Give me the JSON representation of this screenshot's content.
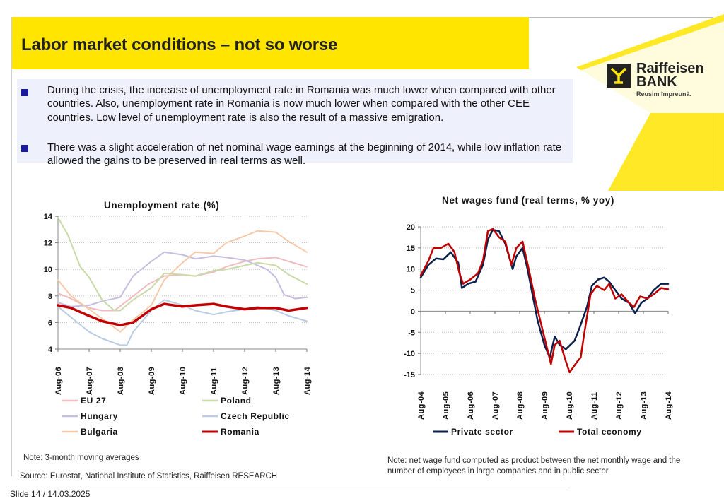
{
  "title": "Labor market conditions – not so worse",
  "logo": {
    "brand_line1": "Raiffeisen",
    "brand_line2": "BANK",
    "slogan": "Reușim împreună."
  },
  "bullets": [
    "During the crisis, the increase of unemployment rate in Romania was much lower when compared with other countries. Also, unemployment rate in Romania is now much lower when compared with the other CEE countries. Low level of unemployment rate is also the result of a massive emigration.",
    "There was a slight acceleration of net nominal wage earnings at the beginning of 2014, while low inflation rate allowed the gains to be preserved in real terms as well."
  ],
  "notes": {
    "left": "Note: 3-month moving averages",
    "source": "Source: Eurostat, National Institute of Statistics, Raiffeisen RESEARCH",
    "right": "Note: net wage fund computed as product between the net monthly wage and the number of employees in large companies and in public sector"
  },
  "slide": "Slide 14 / 14.03.2025",
  "chart_data": [
    {
      "type": "line",
      "title": "Unemployment rate (%)",
      "ylim": [
        4,
        14
      ],
      "yticks": [
        "4",
        "6",
        "8",
        "10",
        "12",
        "14"
      ],
      "x_start": 2006.583,
      "x_end": 2014.583,
      "xtick_labels": [
        "Aug-06",
        "Aug-07",
        "Aug-08",
        "Aug-09",
        "Aug-10",
        "Aug-11",
        "Aug-12",
        "Aug-13",
        "Aug-14"
      ],
      "xtick_pos": [
        2006.583,
        2007.583,
        2008.583,
        2009.583,
        2010.583,
        2011.583,
        2012.583,
        2013.583,
        2014.583
      ],
      "grid": true,
      "series": [
        {
          "name": "EU 27",
          "color": "#f0bcc0",
          "width": 2,
          "points": [
            [
              2006.583,
              8.2
            ],
            [
              2007.0,
              7.8
            ],
            [
              2007.583,
              7.1
            ],
            [
              2008.0,
              6.9
            ],
            [
              2008.4,
              6.9
            ],
            [
              2008.9,
              7.8
            ],
            [
              2009.5,
              8.9
            ],
            [
              2010.0,
              9.5
            ],
            [
              2010.583,
              9.6
            ],
            [
              2011.0,
              9.5
            ],
            [
              2011.583,
              9.8
            ],
            [
              2012.0,
              10.2
            ],
            [
              2012.583,
              10.6
            ],
            [
              2013.0,
              10.8
            ],
            [
              2013.583,
              10.9
            ],
            [
              2014.0,
              10.6
            ],
            [
              2014.583,
              10.2
            ]
          ]
        },
        {
          "name": "Hungary",
          "color": "#c7bde0",
          "width": 2,
          "points": [
            [
              2006.583,
              7.5
            ],
            [
              2007.0,
              7.2
            ],
            [
              2007.583,
              7.3
            ],
            [
              2008.0,
              7.6
            ],
            [
              2008.583,
              7.9
            ],
            [
              2009.0,
              9.5
            ],
            [
              2009.583,
              10.6
            ],
            [
              2010.0,
              11.3
            ],
            [
              2010.583,
              11.1
            ],
            [
              2011.0,
              10.8
            ],
            [
              2011.583,
              11.0
            ],
            [
              2012.0,
              10.9
            ],
            [
              2012.583,
              10.7
            ],
            [
              2013.0,
              10.3
            ],
            [
              2013.3,
              10.0
            ],
            [
              2013.583,
              9.4
            ],
            [
              2013.85,
              8.1
            ],
            [
              2014.2,
              7.8
            ],
            [
              2014.583,
              7.9
            ]
          ]
        },
        {
          "name": "Bulgaria",
          "color": "#f8c9a8",
          "width": 2,
          "points": [
            [
              2006.583,
              9.2
            ],
            [
              2007.0,
              8.0
            ],
            [
              2007.583,
              7.0
            ],
            [
              2008.0,
              6.3
            ],
            [
              2008.583,
              5.3
            ],
            [
              2009.0,
              6.2
            ],
            [
              2009.583,
              7.3
            ],
            [
              2010.0,
              9.2
            ],
            [
              2010.583,
              10.5
            ],
            [
              2011.0,
              11.3
            ],
            [
              2011.583,
              11.2
            ],
            [
              2012.0,
              12.0
            ],
            [
              2012.583,
              12.5
            ],
            [
              2013.0,
              12.9
            ],
            [
              2013.583,
              12.8
            ],
            [
              2014.0,
              12.1
            ],
            [
              2014.583,
              11.3
            ]
          ]
        },
        {
          "name": "Poland",
          "color": "#c8dba8",
          "width": 2,
          "points": [
            [
              2006.583,
              13.9
            ],
            [
              2006.9,
              12.6
            ],
            [
              2007.3,
              10.2
            ],
            [
              2007.583,
              9.4
            ],
            [
              2008.0,
              7.7
            ],
            [
              2008.4,
              6.9
            ],
            [
              2008.583,
              6.9
            ],
            [
              2009.0,
              7.7
            ],
            [
              2009.583,
              8.6
            ],
            [
              2010.0,
              9.7
            ],
            [
              2010.583,
              9.6
            ],
            [
              2011.0,
              9.5
            ],
            [
              2011.583,
              9.9
            ],
            [
              2012.0,
              10.0
            ],
            [
              2012.583,
              10.3
            ],
            [
              2013.0,
              10.5
            ],
            [
              2013.583,
              10.3
            ],
            [
              2014.0,
              9.6
            ],
            [
              2014.583,
              8.9
            ]
          ]
        },
        {
          "name": "Czech Republic",
          "color": "#b9cce4",
          "width": 2,
          "points": [
            [
              2006.583,
              7.2
            ],
            [
              2007.0,
              6.4
            ],
            [
              2007.583,
              5.3
            ],
            [
              2008.0,
              4.8
            ],
            [
              2008.583,
              4.3
            ],
            [
              2008.8,
              4.3
            ],
            [
              2009.0,
              5.3
            ],
            [
              2009.583,
              6.9
            ],
            [
              2010.0,
              7.7
            ],
            [
              2010.583,
              7.3
            ],
            [
              2011.0,
              6.9
            ],
            [
              2011.583,
              6.6
            ],
            [
              2012.0,
              6.8
            ],
            [
              2012.583,
              7.0
            ],
            [
              2013.0,
              7.2
            ],
            [
              2013.583,
              6.9
            ],
            [
              2014.0,
              6.5
            ],
            [
              2014.583,
              6.1
            ]
          ]
        },
        {
          "name": "Romania",
          "color": "#c00000",
          "width": 3.5,
          "points": [
            [
              2006.583,
              7.3
            ],
            [
              2007.0,
              7.1
            ],
            [
              2007.583,
              6.5
            ],
            [
              2008.0,
              6.1
            ],
            [
              2008.583,
              5.8
            ],
            [
              2009.0,
              6.0
            ],
            [
              2009.583,
              7.0
            ],
            [
              2010.0,
              7.4
            ],
            [
              2010.583,
              7.2
            ],
            [
              2011.0,
              7.3
            ],
            [
              2011.583,
              7.4
            ],
            [
              2012.0,
              7.2
            ],
            [
              2012.583,
              7.0
            ],
            [
              2013.0,
              7.1
            ],
            [
              2013.583,
              7.1
            ],
            [
              2014.0,
              6.9
            ],
            [
              2014.583,
              7.1
            ]
          ]
        }
      ],
      "legend": [
        {
          "name": "EU 27",
          "color": "#f0bcc0"
        },
        {
          "name": "Poland",
          "color": "#c8dba8"
        },
        {
          "name": "Hungary",
          "color": "#c7bde0"
        },
        {
          "name": "Czech Republic",
          "color": "#b9cce4"
        },
        {
          "name": "Bulgaria",
          "color": "#f8c9a8"
        },
        {
          "name": "Romania",
          "color": "#c00000"
        }
      ]
    },
    {
      "type": "line",
      "title": "Net wages fund (real terms, % yoy)",
      "ylim": [
        -15,
        20
      ],
      "yticks": [
        "-15",
        "-10",
        "-5",
        "0",
        "5",
        "10",
        "15",
        "20"
      ],
      "x_start": 2004.583,
      "x_end": 2014.583,
      "xtick_labels": [
        "Aug-04",
        "Aug-05",
        "Aug-06",
        "Aug-07",
        "Aug-08",
        "Aug-09",
        "Aug-10",
        "Aug-11",
        "Aug-12",
        "Aug-13",
        "Aug-14"
      ],
      "xtick_pos": [
        2004.583,
        2005.583,
        2006.583,
        2007.583,
        2008.583,
        2009.583,
        2010.583,
        2011.583,
        2012.583,
        2013.583,
        2014.583
      ],
      "grid": true,
      "series": [
        {
          "name": "Private sector",
          "color": "#0a1f4a",
          "width": 2.5,
          "points": [
            [
              2004.583,
              8
            ],
            [
              2004.9,
              11
            ],
            [
              2005.2,
              12.5
            ],
            [
              2005.5,
              12.3
            ],
            [
              2005.8,
              14
            ],
            [
              2006.1,
              11.5
            ],
            [
              2006.25,
              5.5
            ],
            [
              2006.5,
              6.5
            ],
            [
              2006.8,
              7
            ],
            [
              2007.1,
              11
            ],
            [
              2007.3,
              17
            ],
            [
              2007.5,
              19.3
            ],
            [
              2007.75,
              19
            ],
            [
              2008.0,
              16
            ],
            [
              2008.3,
              10
            ],
            [
              2008.45,
              13
            ],
            [
              2008.7,
              15
            ],
            [
              2008.9,
              10
            ],
            [
              2009.1,
              4
            ],
            [
              2009.3,
              -2
            ],
            [
              2009.583,
              -8
            ],
            [
              2009.8,
              -11
            ],
            [
              2010.0,
              -6
            ],
            [
              2010.2,
              -8
            ],
            [
              2010.45,
              -9
            ],
            [
              2010.8,
              -7
            ],
            [
              2011.0,
              -4
            ],
            [
              2011.3,
              1
            ],
            [
              2011.5,
              6
            ],
            [
              2011.75,
              7.5
            ],
            [
              2012.0,
              8
            ],
            [
              2012.2,
              7
            ],
            [
              2012.45,
              5
            ],
            [
              2012.7,
              3
            ],
            [
              2013.0,
              2
            ],
            [
              2013.25,
              -0.5
            ],
            [
              2013.5,
              2
            ],
            [
              2013.75,
              3
            ],
            [
              2014.0,
              5
            ],
            [
              2014.3,
              6.5
            ],
            [
              2014.583,
              6.5
            ]
          ]
        },
        {
          "name": "Total economy",
          "color": "#c00000",
          "width": 2.5,
          "points": [
            [
              2004.583,
              8.5
            ],
            [
              2004.9,
              12
            ],
            [
              2005.1,
              15
            ],
            [
              2005.4,
              15
            ],
            [
              2005.7,
              16
            ],
            [
              2005.95,
              14
            ],
            [
              2006.15,
              9
            ],
            [
              2006.3,
              6.5
            ],
            [
              2006.583,
              7.5
            ],
            [
              2006.9,
              9
            ],
            [
              2007.1,
              12
            ],
            [
              2007.3,
              19
            ],
            [
              2007.5,
              19.5
            ],
            [
              2007.75,
              17.5
            ],
            [
              2008.0,
              16.5
            ],
            [
              2008.25,
              11
            ],
            [
              2008.45,
              15
            ],
            [
              2008.7,
              16.5
            ],
            [
              2008.95,
              10
            ],
            [
              2009.2,
              3
            ],
            [
              2009.45,
              -3
            ],
            [
              2009.7,
              -9
            ],
            [
              2009.85,
              -12.5
            ],
            [
              2010.0,
              -8
            ],
            [
              2010.2,
              -7
            ],
            [
              2010.4,
              -11
            ],
            [
              2010.6,
              -14.5
            ],
            [
              2010.9,
              -12
            ],
            [
              2011.05,
              -11
            ],
            [
              2011.2,
              -5
            ],
            [
              2011.45,
              4
            ],
            [
              2011.7,
              6
            ],
            [
              2012.0,
              5
            ],
            [
              2012.2,
              6.5
            ],
            [
              2012.45,
              3
            ],
            [
              2012.7,
              4
            ],
            [
              2013.0,
              2
            ],
            [
              2013.2,
              1
            ],
            [
              2013.45,
              3.5
            ],
            [
              2013.75,
              3
            ],
            [
              2014.0,
              4
            ],
            [
              2014.3,
              5.5
            ],
            [
              2014.583,
              5.2
            ]
          ]
        }
      ],
      "legend": [
        {
          "name": "Private sector",
          "color": "#0a1f4a"
        },
        {
          "name": "Total economy",
          "color": "#c00000"
        }
      ]
    }
  ]
}
